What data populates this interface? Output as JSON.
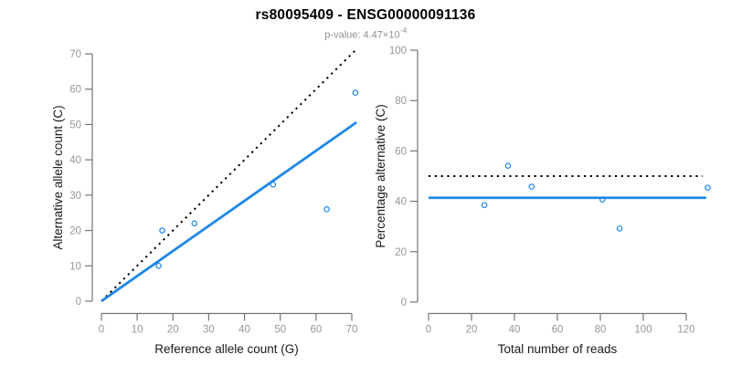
{
  "header": {
    "title": "rs80095409 - ENSG00000091136",
    "p_value_label": "p-value: 4.47×10",
    "p_value_exponent": "-4"
  },
  "colors": {
    "accent_blue": "#1F87E8",
    "dotted_black": "#000000",
    "axis_line_gray": "#747474",
    "tick_text_gray": "#969696",
    "axis_title_color": "#1a1a1a",
    "subtitle_gray": "#8f8f8f",
    "background": "#ffffff"
  },
  "chart_data": [
    {
      "type": "scatter",
      "panel": "left",
      "xlabel": "Reference allele count (G)",
      "ylabel": "Alternative allele count (C)",
      "xlim": [
        0,
        71.5
      ],
      "ylim": [
        0,
        71.5
      ],
      "xticks": [
        0,
        10,
        20,
        30,
        40,
        50,
        60,
        70
      ],
      "yticks": [
        0,
        10,
        20,
        30,
        40,
        50,
        60,
        70
      ],
      "grid": false,
      "legend": "none",
      "points": [
        [
          17,
          20
        ],
        [
          16,
          10
        ],
        [
          26,
          22
        ],
        [
          48,
          33
        ],
        [
          63,
          26
        ],
        [
          71,
          59
        ]
      ],
      "lines": [
        {
          "label": "identity y = x",
          "style": "dotted",
          "color": "#000000",
          "width": 2,
          "from": [
            0,
            0
          ],
          "to": [
            71.5,
            71.5
          ]
        },
        {
          "label": "fitted allelic ratio 0.71",
          "style": "solid",
          "color": "#1F87E8",
          "width": 2.8,
          "from": [
            0,
            0
          ],
          "to": [
            71.3,
            50.6
          ]
        }
      ]
    },
    {
      "type": "scatter",
      "panel": "right",
      "xlabel": "Total number of reads",
      "ylabel": "Percentage alternative (C)",
      "xlim": [
        0,
        131
      ],
      "ylim": [
        0,
        100
      ],
      "xticks": [
        0,
        20,
        40,
        60,
        80,
        100,
        120
      ],
      "yticks": [
        0,
        20,
        40,
        60,
        80,
        100
      ],
      "grid": false,
      "legend": "none",
      "points": [
        [
          37,
          54.1
        ],
        [
          26,
          38.5
        ],
        [
          48,
          45.8
        ],
        [
          81,
          40.7
        ],
        [
          89,
          29.2
        ],
        [
          130,
          45.4
        ]
      ],
      "lines": [
        {
          "label": "50% reference line",
          "style": "dotted",
          "color": "#000000",
          "width": 2,
          "from": [
            0,
            50
          ],
          "to": [
            127.6,
            50
          ]
        },
        {
          "label": "mean percentage 41.4%",
          "style": "solid",
          "color": "#1F87E8",
          "width": 2.8,
          "from": [
            0,
            41.4
          ],
          "to": [
            129.3,
            41.4
          ]
        }
      ]
    }
  ]
}
